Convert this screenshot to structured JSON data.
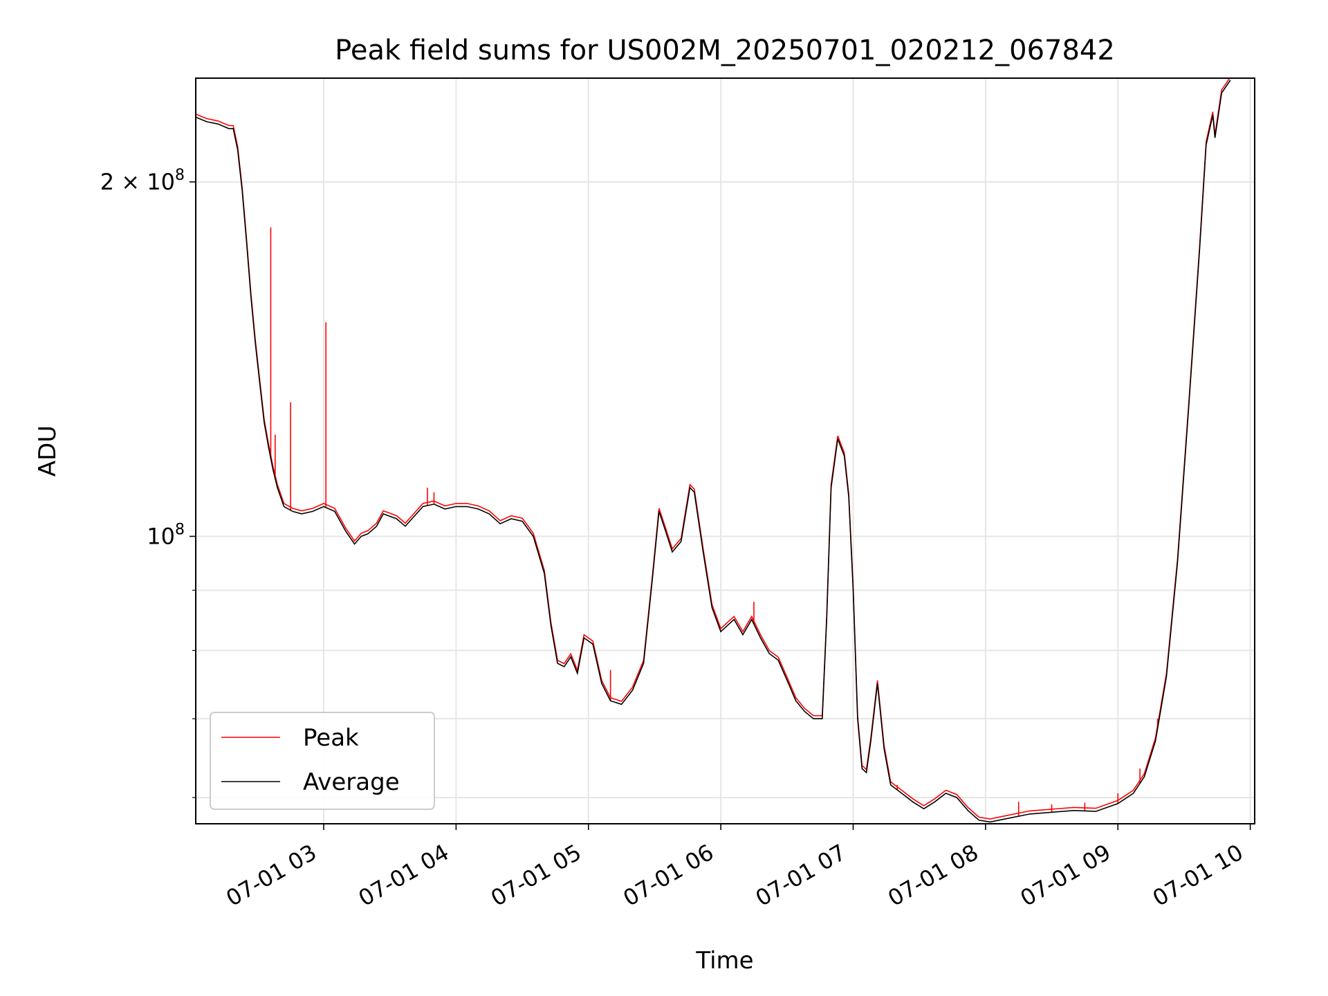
{
  "chart_data": {
    "type": "line",
    "title": "Peak field sums for US002M_20250701_020212_067842",
    "xlabel": "Time",
    "ylabel": "ADU",
    "yscale": "log",
    "ylim": [
      57000000,
      245000000
    ],
    "xlim": [
      "2025-07-01 02:02",
      "2025-07-01 10:02"
    ],
    "x_ticks": [
      {
        "value": "2025-07-01 03:00",
        "label": "07-01 03"
      },
      {
        "value": "2025-07-01 04:00",
        "label": "07-01 04"
      },
      {
        "value": "2025-07-01 05:00",
        "label": "07-01 05"
      },
      {
        "value": "2025-07-01 06:00",
        "label": "07-01 06"
      },
      {
        "value": "2025-07-01 07:00",
        "label": "07-01 07"
      },
      {
        "value": "2025-07-01 08:00",
        "label": "07-01 08"
      },
      {
        "value": "2025-07-01 09:00",
        "label": "07-01 09"
      },
      {
        "value": "2025-07-01 10:00",
        "label": "07-01 10"
      }
    ],
    "y_ticks_major": [
      {
        "value": 100000000,
        "base": "10",
        "exp": "8",
        "prefix": ""
      },
      {
        "value": 200000000,
        "base": "10",
        "exp": "8",
        "prefix": "2 × "
      }
    ],
    "y_ticks_minor": [
      60000000,
      70000000,
      80000000,
      90000000
    ],
    "grid": true,
    "legend": "lower-left",
    "colors": {
      "peak": "#ff0000",
      "average": "#000000",
      "grid": "#e6e6e6"
    },
    "series": [
      {
        "name": "Average",
        "color": "#000000",
        "points": [
          [
            "2025-07-01 02:02",
            227000000
          ],
          [
            "2025-07-01 02:07",
            225000000
          ],
          [
            "2025-07-01 02:12",
            224000000
          ],
          [
            "2025-07-01 02:17",
            222000000
          ],
          [
            "2025-07-01 02:19",
            222000000
          ],
          [
            "2025-07-01 02:21",
            213000000
          ],
          [
            "2025-07-01 02:23",
            197000000
          ],
          [
            "2025-07-01 02:25",
            178000000
          ],
          [
            "2025-07-01 02:27",
            160000000
          ],
          [
            "2025-07-01 02:29",
            146000000
          ],
          [
            "2025-07-01 02:31",
            135000000
          ],
          [
            "2025-07-01 02:33",
            125000000
          ],
          [
            "2025-07-01 02:35",
            119000000
          ],
          [
            "2025-07-01 02:37",
            114000000
          ],
          [
            "2025-07-01 02:39",
            110000000
          ],
          [
            "2025-07-01 02:42",
            106000000
          ],
          [
            "2025-07-01 02:46",
            105000000
          ],
          [
            "2025-07-01 02:50",
            104500000
          ],
          [
            "2025-07-01 02:55",
            105000000
          ],
          [
            "2025-07-01 03:00",
            106000000
          ],
          [
            "2025-07-01 03:05",
            105000000
          ],
          [
            "2025-07-01 03:10",
            101000000
          ],
          [
            "2025-07-01 03:14",
            98500000
          ],
          [
            "2025-07-01 03:17",
            100000000
          ],
          [
            "2025-07-01 03:20",
            100500000
          ],
          [
            "2025-07-01 03:24",
            102000000
          ],
          [
            "2025-07-01 03:27",
            104500000
          ],
          [
            "2025-07-01 03:30",
            104000000
          ],
          [
            "2025-07-01 03:33",
            103500000
          ],
          [
            "2025-07-01 03:37",
            102000000
          ],
          [
            "2025-07-01 03:40",
            103500000
          ],
          [
            "2025-07-01 03:45",
            106000000
          ],
          [
            "2025-07-01 03:50",
            106500000
          ],
          [
            "2025-07-01 03:55",
            105500000
          ],
          [
            "2025-07-01 04:00",
            106000000
          ],
          [
            "2025-07-01 04:05",
            106000000
          ],
          [
            "2025-07-01 04:10",
            105500000
          ],
          [
            "2025-07-01 04:15",
            104500000
          ],
          [
            "2025-07-01 04:20",
            102500000
          ],
          [
            "2025-07-01 04:25",
            103500000
          ],
          [
            "2025-07-01 04:30",
            103000000
          ],
          [
            "2025-07-01 04:35",
            100000000
          ],
          [
            "2025-07-01 04:40",
            93000000
          ],
          [
            "2025-07-01 04:43",
            84000000
          ],
          [
            "2025-07-01 04:46",
            78000000
          ],
          [
            "2025-07-01 04:49",
            77500000
          ],
          [
            "2025-07-01 04:52",
            79000000
          ],
          [
            "2025-07-01 04:55",
            76500000
          ],
          [
            "2025-07-01 04:58",
            82000000
          ],
          [
            "2025-07-01 05:02",
            81000000
          ],
          [
            "2025-07-01 05:06",
            75000000
          ],
          [
            "2025-07-01 05:10",
            72500000
          ],
          [
            "2025-07-01 05:15",
            72000000
          ],
          [
            "2025-07-01 05:20",
            74000000
          ],
          [
            "2025-07-01 05:25",
            78000000
          ],
          [
            "2025-07-01 05:29",
            92000000
          ],
          [
            "2025-07-01 05:32",
            105000000
          ],
          [
            "2025-07-01 05:35",
            101000000
          ],
          [
            "2025-07-01 05:38",
            97000000
          ],
          [
            "2025-07-01 05:42",
            99000000
          ],
          [
            "2025-07-01 05:46",
            110000000
          ],
          [
            "2025-07-01 05:48",
            109000000
          ],
          [
            "2025-07-01 05:52",
            97000000
          ],
          [
            "2025-07-01 05:56",
            87000000
          ],
          [
            "2025-07-01 06:00",
            83000000
          ],
          [
            "2025-07-01 06:03",
            84000000
          ],
          [
            "2025-07-01 06:06",
            85000000
          ],
          [
            "2025-07-01 06:10",
            82500000
          ],
          [
            "2025-07-01 06:14",
            85000000
          ],
          [
            "2025-07-01 06:18",
            82000000
          ],
          [
            "2025-07-01 06:22",
            79500000
          ],
          [
            "2025-07-01 06:26",
            78500000
          ],
          [
            "2025-07-01 06:30",
            75500000
          ],
          [
            "2025-07-01 06:34",
            72500000
          ],
          [
            "2025-07-01 06:38",
            71000000
          ],
          [
            "2025-07-01 06:42",
            70000000
          ],
          [
            "2025-07-01 06:46",
            70000000
          ],
          [
            "2025-07-01 06:48",
            85000000
          ],
          [
            "2025-07-01 06:50",
            110000000
          ],
          [
            "2025-07-01 06:53",
            121000000
          ],
          [
            "2025-07-01 06:56",
            117000000
          ],
          [
            "2025-07-01 06:58",
            108000000
          ],
          [
            "2025-07-01 07:00",
            90000000
          ],
          [
            "2025-07-01 07:02",
            70000000
          ],
          [
            "2025-07-01 07:04",
            63500000
          ],
          [
            "2025-07-01 07:06",
            63000000
          ],
          [
            "2025-07-01 07:08",
            67000000
          ],
          [
            "2025-07-01 07:11",
            75000000
          ],
          [
            "2025-07-01 07:14",
            66000000
          ],
          [
            "2025-07-01 07:17",
            61500000
          ],
          [
            "2025-07-01 07:22",
            60500000
          ],
          [
            "2025-07-01 07:27",
            59500000
          ],
          [
            "2025-07-01 07:32",
            58700000
          ],
          [
            "2025-07-01 07:37",
            59500000
          ],
          [
            "2025-07-01 07:42",
            60500000
          ],
          [
            "2025-07-01 07:47",
            60000000
          ],
          [
            "2025-07-01 07:52",
            58500000
          ],
          [
            "2025-07-01 07:57",
            57400000
          ],
          [
            "2025-07-01 08:02",
            57200000
          ],
          [
            "2025-07-01 08:10",
            57600000
          ],
          [
            "2025-07-01 08:20",
            58100000
          ],
          [
            "2025-07-01 08:30",
            58300000
          ],
          [
            "2025-07-01 08:40",
            58500000
          ],
          [
            "2025-07-01 08:50",
            58400000
          ],
          [
            "2025-07-01 09:00",
            59300000
          ],
          [
            "2025-07-01 09:07",
            60500000
          ],
          [
            "2025-07-01 09:12",
            62500000
          ],
          [
            "2025-07-01 09:17",
            67000000
          ],
          [
            "2025-07-01 09:22",
            76000000
          ],
          [
            "2025-07-01 09:27",
            95000000
          ],
          [
            "2025-07-01 09:32",
            128000000
          ],
          [
            "2025-07-01 09:37",
            175000000
          ],
          [
            "2025-07-01 09:40",
            215000000
          ],
          [
            "2025-07-01 09:43",
            228000000
          ],
          [
            "2025-07-01 09:44",
            218000000
          ],
          [
            "2025-07-01 09:47",
            238000000
          ],
          [
            "2025-07-01 09:51",
            244000000
          ]
        ]
      },
      {
        "name": "Peak",
        "color": "#ff0000",
        "spikes": [
          [
            "2025-07-01 02:36",
            183000000
          ],
          [
            "2025-07-01 02:38",
            122000000
          ],
          [
            "2025-07-01 02:45",
            130000000
          ],
          [
            "2025-07-01 03:01",
            152000000
          ],
          [
            "2025-07-01 03:47",
            110000000
          ],
          [
            "2025-07-01 03:50",
            109000000
          ],
          [
            "2025-07-01 05:10",
            77000000
          ],
          [
            "2025-07-01 06:15",
            88000000
          ],
          [
            "2025-07-01 07:20",
            61500000
          ],
          [
            "2025-07-01 08:15",
            59500000
          ],
          [
            "2025-07-01 08:30",
            59200000
          ],
          [
            "2025-07-01 08:45",
            59400000
          ],
          [
            "2025-07-01 09:00",
            60500000
          ],
          [
            "2025-07-01 09:10",
            63500000
          ],
          [
            "2025-07-01 09:18",
            70000000
          ]
        ]
      }
    ]
  }
}
